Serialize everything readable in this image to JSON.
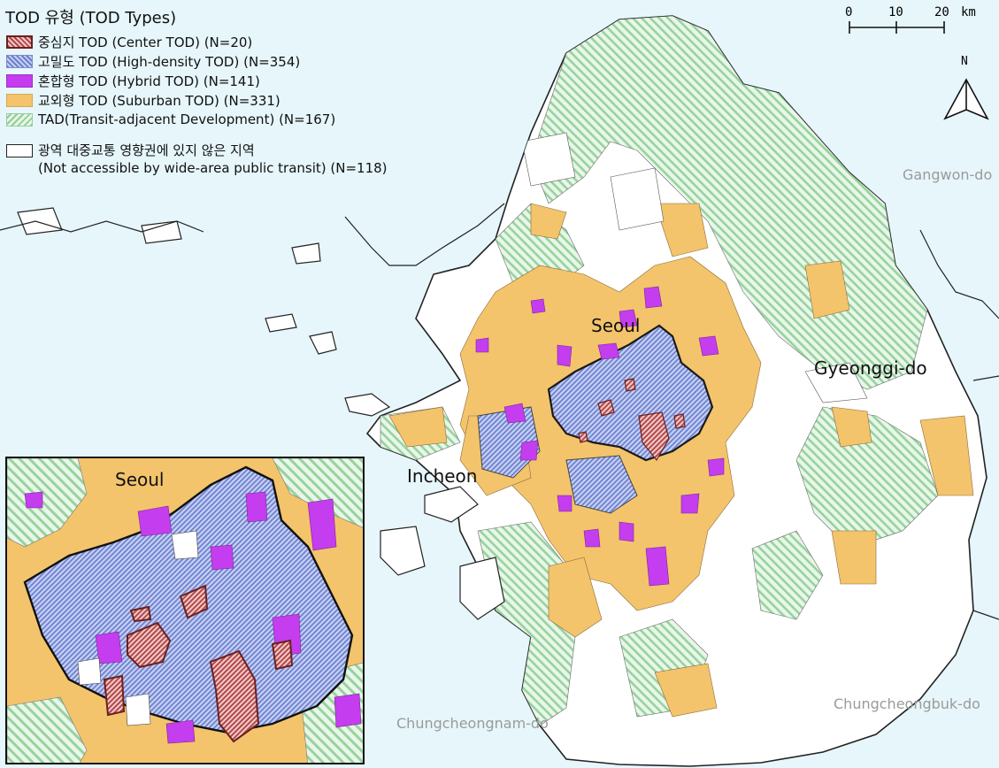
{
  "legend": {
    "title": "TOD 유형 (TOD Types)",
    "items": [
      {
        "label": "중심지 TOD (Center TOD) (N=20)",
        "key": "center"
      },
      {
        "label": "고밀도 TOD (High-density TOD) (N=354)",
        "key": "high-density"
      },
      {
        "label": "혼합형 TOD (Hybrid TOD) (N=141)",
        "key": "hybrid"
      },
      {
        "label": "교외형 TOD (Suburban TOD) (N=331)",
        "key": "suburban"
      },
      {
        "label": "TAD(Transit-adjacent Development) (N=167)",
        "key": "tad"
      }
    ],
    "none_label_ko": "광역 대중교통 영향권에 있지 않은 지역",
    "none_label_en": "(Not accessible by wide-area public transit) (N=118)"
  },
  "scale": {
    "ticks": [
      "0",
      "10",
      "20"
    ],
    "unit": "km"
  },
  "north_label": "N",
  "regions": {
    "gangwon": "Gangwon-do",
    "gyeonggi": "Gyeonggi-do",
    "chungnam": "Chungcheongnam-do",
    "chungbuk": "Chungcheongbuk-do"
  },
  "cities": {
    "seoul": "Seoul",
    "incheon": "Incheon"
  },
  "inset": {
    "label": "Seoul"
  },
  "colors": {
    "sea": "#e6f6fb",
    "center": "#b24646",
    "high_density": "#6a7fd0",
    "hybrid": "#c43dee",
    "suburban": "#f3c46c",
    "tad": "#8fcf95",
    "none": "#ffffff",
    "boundary": "#222222"
  }
}
